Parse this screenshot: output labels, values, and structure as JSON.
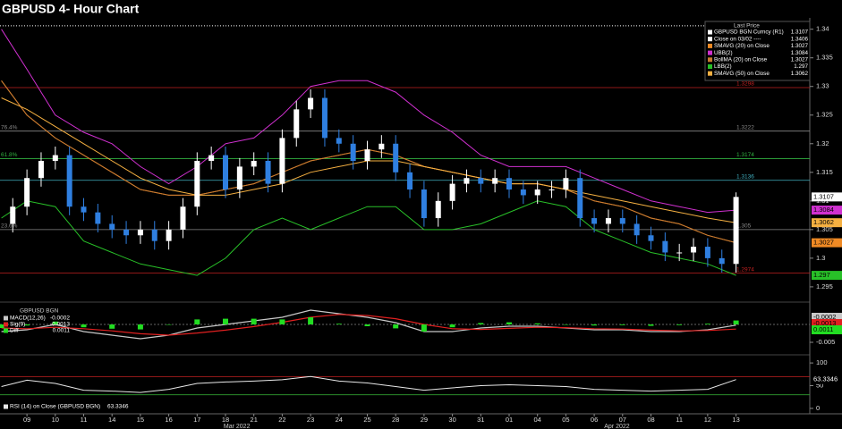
{
  "chart_data": [
    {
      "type": "candlestick",
      "title": "GBPUSD 4- Hour Chart",
      "legend_title": "Last Price",
      "xlim": [
        -0.95,
        27.6
      ],
      "ylim": [
        1.2928,
        1.3412
      ],
      "yticks": [
        1.295,
        1.3,
        1.305,
        1.31,
        1.315,
        1.32,
        1.325,
        1.33,
        1.335,
        1.34
      ],
      "candles": {
        "name": "GBPUSD BGN Curncy  (R1)",
        "up_color": "#ffffff",
        "down_color": "#2f7fe0",
        "x": [
          -0.5,
          0,
          0.5,
          1,
          1.5,
          2,
          2.5,
          3,
          3.5,
          4,
          4.5,
          5,
          5.5,
          6,
          6.5,
          7,
          7.5,
          8,
          8.5,
          9,
          9.5,
          10,
          10.5,
          11,
          11.5,
          12,
          12.5,
          13,
          13.5,
          14,
          14.5,
          15,
          15.5,
          16,
          16.5,
          17,
          17.5,
          18,
          18.5,
          19,
          19.5,
          20,
          20.5,
          21,
          21.5,
          22,
          22.5,
          23,
          23.5,
          24,
          24.5,
          25
        ],
        "open": [
          1.306,
          1.309,
          1.314,
          1.317,
          1.318,
          1.309,
          1.308,
          1.306,
          1.305,
          1.304,
          1.305,
          1.303,
          1.305,
          1.309,
          1.317,
          1.318,
          1.312,
          1.316,
          1.317,
          1.313,
          1.321,
          1.326,
          1.328,
          1.321,
          1.32,
          1.317,
          1.319,
          1.32,
          1.315,
          1.312,
          1.307,
          1.31,
          1.313,
          1.314,
          1.313,
          1.314,
          1.312,
          1.311,
          1.312,
          1.312,
          1.314,
          1.307,
          1.306,
          1.307,
          1.306,
          1.304,
          1.303,
          1.301,
          1.301,
          1.302,
          1.3,
          1.299
        ],
        "high": [
          1.3105,
          1.3155,
          1.3185,
          1.3195,
          1.3195,
          1.3105,
          1.3095,
          1.3075,
          1.3065,
          1.3065,
          1.3065,
          1.3065,
          1.3105,
          1.3185,
          1.3195,
          1.3195,
          1.3175,
          1.3185,
          1.3185,
          1.3225,
          1.3275,
          1.3295,
          1.3295,
          1.3225,
          1.3215,
          1.3205,
          1.3215,
          1.3215,
          1.3165,
          1.3135,
          1.3115,
          1.3145,
          1.3155,
          1.3155,
          1.3155,
          1.3155,
          1.3135,
          1.3135,
          1.3135,
          1.3155,
          1.3155,
          1.3085,
          1.3085,
          1.3085,
          1.3075,
          1.3055,
          1.3045,
          1.3025,
          1.3035,
          1.3035,
          1.3015,
          1.3115
        ],
        "low": [
          1.3045,
          1.3075,
          1.3125,
          1.3155,
          1.3075,
          1.3065,
          1.3045,
          1.3035,
          1.3025,
          1.3025,
          1.3015,
          1.3015,
          1.3035,
          1.3075,
          1.3155,
          1.3105,
          1.3105,
          1.3145,
          1.3115,
          1.3115,
          1.3195,
          1.3245,
          1.3195,
          1.3185,
          1.3155,
          1.3155,
          1.3175,
          1.3135,
          1.3105,
          1.3055,
          1.3055,
          1.3085,
          1.3115,
          1.3115,
          1.3115,
          1.3105,
          1.3095,
          1.3095,
          1.3105,
          1.3105,
          1.3055,
          1.3045,
          1.3045,
          1.3045,
          1.3025,
          1.3015,
          1.2995,
          1.2995,
          1.2995,
          1.2985,
          1.2975,
          1.2975
        ],
        "close": [
          1.309,
          1.314,
          1.317,
          1.318,
          1.309,
          1.308,
          1.306,
          1.305,
          1.304,
          1.305,
          1.303,
          1.305,
          1.309,
          1.317,
          1.318,
          1.312,
          1.316,
          1.317,
          1.313,
          1.321,
          1.326,
          1.328,
          1.321,
          1.32,
          1.317,
          1.319,
          1.32,
          1.315,
          1.312,
          1.307,
          1.31,
          1.313,
          1.314,
          1.313,
          1.314,
          1.312,
          1.311,
          1.312,
          1.312,
          1.314,
          1.307,
          1.306,
          1.307,
          1.306,
          1.304,
          1.303,
          1.301,
          1.301,
          1.302,
          1.3,
          1.299,
          1.3107
        ]
      },
      "reference": {
        "name": "Close on 03/02 ----",
        "value": 1.3406,
        "color": "#ffffff"
      },
      "x": [
        -0.9,
        0,
        1,
        2,
        3,
        4,
        5,
        6,
        7,
        8,
        9,
        10,
        11,
        12,
        13,
        14,
        15,
        16,
        17,
        18,
        19,
        20,
        21,
        22,
        23,
        24,
        25
      ],
      "series": [
        {
          "name": "SMAVG (20)  on Close",
          "color": "#f08a24",
          "values": [
            1.331,
            1.325,
            1.321,
            1.318,
            1.315,
            1.312,
            1.311,
            1.311,
            1.312,
            1.313,
            1.315,
            1.317,
            1.318,
            1.319,
            1.318,
            1.316,
            1.315,
            1.314,
            1.313,
            1.313,
            1.312,
            1.31,
            1.309,
            1.307,
            1.306,
            1.304,
            1.3027
          ]
        },
        {
          "name": "UBB(2)",
          "color": "#d030d0",
          "values": [
            1.34,
            1.333,
            1.325,
            1.322,
            1.32,
            1.316,
            1.313,
            1.316,
            1.32,
            1.321,
            1.325,
            1.33,
            1.331,
            1.331,
            1.329,
            1.325,
            1.322,
            1.318,
            1.316,
            1.316,
            1.316,
            1.314,
            1.312,
            1.31,
            1.309,
            1.308,
            1.3084
          ]
        },
        {
          "name": "BollMA (20)  on Close",
          "color": "#c87a30",
          "values": [
            1.331,
            1.325,
            1.321,
            1.318,
            1.315,
            1.312,
            1.311,
            1.311,
            1.312,
            1.313,
            1.315,
            1.317,
            1.318,
            1.319,
            1.318,
            1.316,
            1.315,
            1.314,
            1.313,
            1.313,
            1.312,
            1.31,
            1.309,
            1.307,
            1.306,
            1.304,
            1.3027
          ]
        },
        {
          "name": "LBB(2)",
          "color": "#28c028",
          "values": [
            1.307,
            1.31,
            1.309,
            1.303,
            1.301,
            1.299,
            1.298,
            1.297,
            1.3,
            1.305,
            1.307,
            1.305,
            1.307,
            1.309,
            1.309,
            1.305,
            1.305,
            1.306,
            1.308,
            1.31,
            1.309,
            1.305,
            1.303,
            1.301,
            1.3,
            1.299,
            1.297
          ]
        },
        {
          "name": "SMAVG (50)  on Close",
          "color": "#f5b041",
          "values": [
            1.328,
            1.326,
            1.323,
            1.32,
            1.317,
            1.314,
            1.312,
            1.311,
            1.311,
            1.312,
            1.313,
            1.315,
            1.316,
            1.317,
            1.317,
            1.316,
            1.315,
            1.314,
            1.313,
            1.313,
            1.312,
            1.311,
            1.31,
            1.309,
            1.308,
            1.307,
            1.3062
          ]
        }
      ],
      "levels": [
        {
          "value": 1.3298,
          "color": "#c02020"
        },
        {
          "value": 1.3222,
          "color": "#888888",
          "left_label": "76.4%"
        },
        {
          "value": 1.3174,
          "color": "#30b040",
          "left_label": "61.8%"
        },
        {
          "value": 1.3136,
          "color": "#40b0c0"
        },
        {
          "value": 1.305,
          "color": "#888888",
          "left_label": "23.6%"
        },
        {
          "value": 1.2974,
          "color": "#c02020"
        }
      ]
    },
    {
      "type": "macd",
      "title": "GBPUSD BGN",
      "xlim": [
        -0.95,
        27.6
      ],
      "ylim": [
        -0.008,
        0.005
      ],
      "yticks": [
        -0.005
      ],
      "x": [
        -0.9,
        0,
        1,
        2,
        3,
        4,
        5,
        6,
        7,
        8,
        9,
        10,
        11,
        12,
        13,
        14,
        15,
        16,
        17,
        18,
        19,
        20,
        21,
        22,
        23,
        24,
        25
      ],
      "series": [
        {
          "name": "MACD(12,26)",
          "color": "#c8c8c8",
          "values": [
            -0.002,
            -0.0015,
            0,
            -0.002,
            -0.003,
            -0.004,
            -0.003,
            -0.001,
            0,
            0.001,
            0.002,
            0.004,
            0.003,
            0.002,
            0.0005,
            -0.002,
            -0.002,
            -0.001,
            -0.0005,
            -0.0005,
            -0.001,
            -0.0015,
            -0.0015,
            -0.002,
            -0.002,
            -0.0015,
            -0.0002
          ]
        },
        {
          "name": "Sig(9)",
          "color": "#e02020",
          "values": [
            -0.001,
            -0.0012,
            -0.0008,
            -0.0012,
            -0.0018,
            -0.0026,
            -0.003,
            -0.0024,
            -0.0016,
            -0.0006,
            0.0006,
            0.002,
            0.0028,
            0.0025,
            0.0016,
            0,
            -0.0012,
            -0.0014,
            -0.0011,
            -0.0008,
            -0.0009,
            -0.0012,
            -0.0013,
            -0.0016,
            -0.0018,
            -0.0017,
            -0.0013
          ]
        },
        {
          "name": "Diff",
          "color": "#22dd22",
          "values": [
            -0.001,
            -0.0003,
            0.0008,
            -0.0008,
            -0.0012,
            -0.0014,
            0,
            0.0014,
            0.0016,
            0.0016,
            0.0014,
            0.002,
            0.0002,
            -0.0005,
            -0.0011,
            -0.002,
            -0.0008,
            0.0004,
            0.0006,
            0.0003,
            -0.0001,
            -0.0003,
            -0.0002,
            -0.0004,
            -0.0002,
            0.0002,
            0.0011
          ]
        }
      ]
    },
    {
      "type": "line",
      "xlim": [
        -0.95,
        27.6
      ],
      "ylim": [
        -10,
        112
      ],
      "yticks": [
        0,
        50,
        100
      ],
      "x": [
        -0.9,
        0,
        1,
        2,
        3,
        4,
        5,
        6,
        7,
        8,
        9,
        10,
        11,
        12,
        13,
        14,
        15,
        16,
        17,
        18,
        19,
        20,
        21,
        22,
        23,
        24,
        25
      ],
      "series": [
        {
          "name": "RSI (14)   on Close (GBPUSD BGN)",
          "color": "#e8e8e8",
          "values": [
            48,
            62,
            55,
            40,
            38,
            35,
            42,
            55,
            58,
            60,
            63,
            70,
            60,
            56,
            48,
            40,
            45,
            50,
            52,
            50,
            48,
            42,
            40,
            38,
            40,
            42,
            63.3346
          ]
        }
      ],
      "levels": [
        {
          "value": 70,
          "color": "#c02020"
        },
        {
          "value": 30,
          "color": "#30a030"
        }
      ],
      "xticks": [
        {
          "value": 0,
          "label": "09"
        },
        {
          "value": 1,
          "label": "10"
        },
        {
          "value": 2,
          "label": "11"
        },
        {
          "value": 3,
          "label": "14"
        },
        {
          "value": 4,
          "label": "15"
        },
        {
          "value": 5,
          "label": "16"
        },
        {
          "value": 6,
          "label": "17"
        },
        {
          "value": 7,
          "label": "18"
        },
        {
          "value": 8,
          "label": "21"
        },
        {
          "value": 9,
          "label": "22"
        },
        {
          "value": 10,
          "label": "23"
        },
        {
          "value": 11,
          "label": "24"
        },
        {
          "value": 12,
          "label": "25"
        },
        {
          "value": 13,
          "label": "28"
        },
        {
          "value": 14,
          "label": "29"
        },
        {
          "value": 15,
          "label": "30"
        },
        {
          "value": 16,
          "label": "31"
        },
        {
          "value": 17,
          "label": "01"
        },
        {
          "value": 18,
          "label": "04"
        },
        {
          "value": 19,
          "label": "05"
        },
        {
          "value": 20,
          "label": "06"
        },
        {
          "value": 21,
          "label": "07"
        },
        {
          "value": 22,
          "label": "08"
        },
        {
          "value": 23,
          "label": "11"
        },
        {
          "value": 24,
          "label": "12"
        },
        {
          "value": 25,
          "label": "13"
        }
      ],
      "months": [
        {
          "value": 7.4,
          "label": "Mar 2022"
        },
        {
          "value": 20.8,
          "label": "Apr 2022"
        }
      ]
    }
  ]
}
